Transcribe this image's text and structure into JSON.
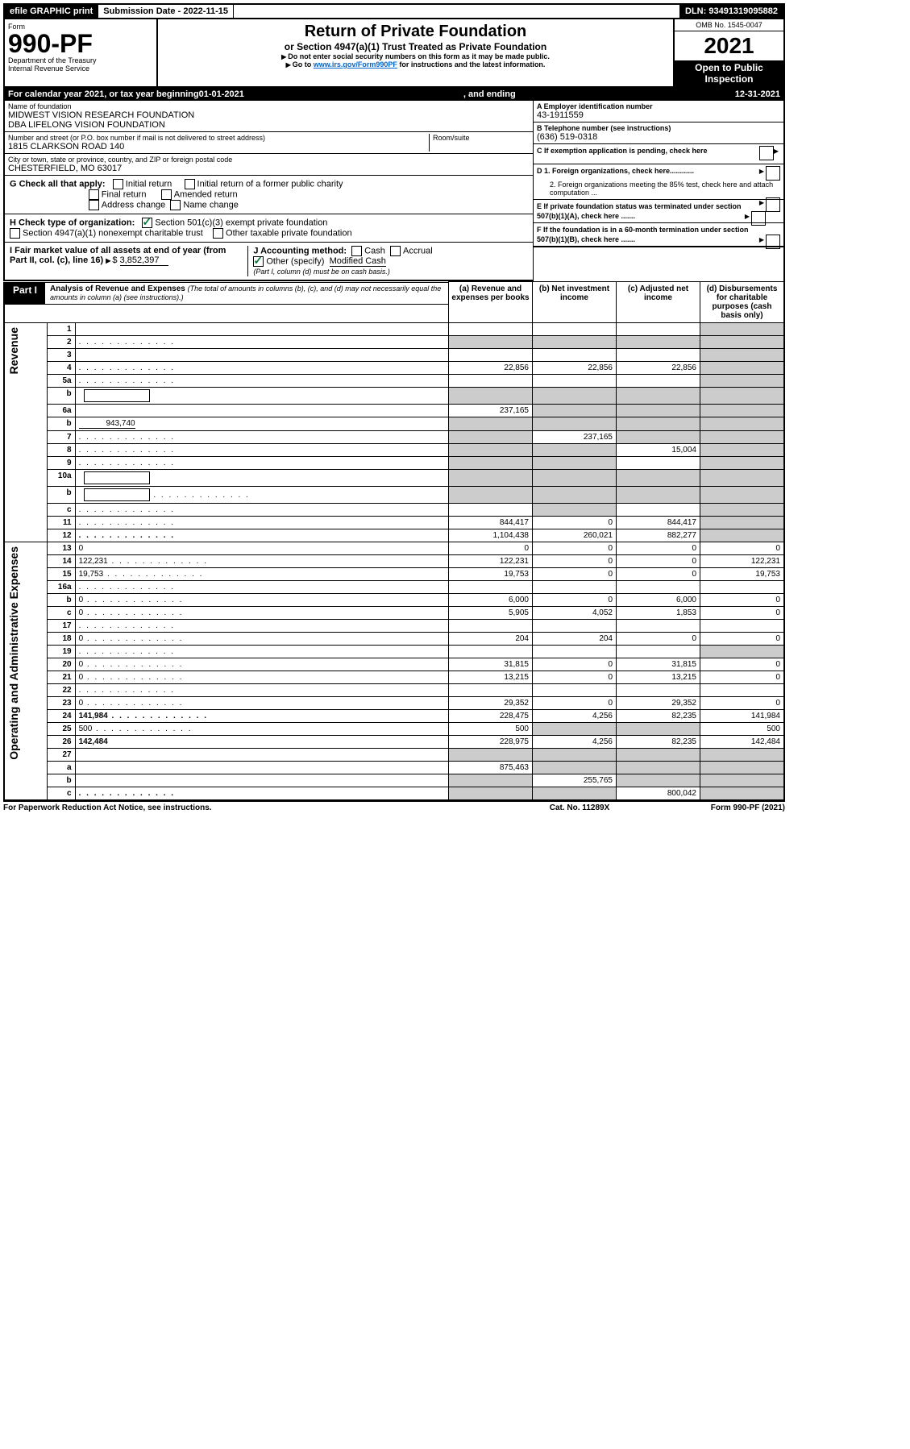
{
  "topbar": {
    "efile": "efile GRAPHIC print",
    "submission_label": "Submission Date - ",
    "submission_date": "2022-11-15",
    "dln_label": "DLN: ",
    "dln": "93491319095882"
  },
  "header": {
    "form_word": "Form",
    "form_number": "990-PF",
    "dept": "Department of the Treasury",
    "irs": "Internal Revenue Service",
    "title": "Return of Private Foundation",
    "subtitle": "or Section 4947(a)(1) Trust Treated as Private Foundation",
    "note1": "Do not enter social security numbers on this form as it may be made public.",
    "note2_prefix": "Go to ",
    "note2_link": "www.irs.gov/Form990PF",
    "note2_suffix": " for instructions and the latest information.",
    "omb": "OMB No. 1545-0047",
    "year": "2021",
    "open": "Open to Public",
    "inspection": "Inspection"
  },
  "calendar": {
    "prefix": "For calendar year 2021, or tax year beginning ",
    "begin": "01-01-2021",
    "mid": ", and ending ",
    "end": "12-31-2021"
  },
  "foundation": {
    "name_label": "Name of foundation",
    "name1": "MIDWEST VISION RESEARCH FOUNDATION",
    "name2": "DBA LIFELONG VISION FOUNDATION",
    "addr_label": "Number and street (or P.O. box number if mail is not delivered to street address)",
    "addr": "1815 CLARKSON ROAD 140",
    "room_label": "Room/suite",
    "city_label": "City or town, state or province, country, and ZIP or foreign postal code",
    "city": "CHESTERFIELD, MO  63017",
    "ein_label": "A Employer identification number",
    "ein": "43-1911559",
    "phone_label": "B Telephone number (see instructions)",
    "phone": "(636) 519-0318",
    "c_label": "C If exemption application is pending, check here",
    "d1": "D 1. Foreign organizations, check here............",
    "d2": "2. Foreign organizations meeting the 85% test, check here and attach computation ...",
    "e_label": "E  If private foundation status was terminated under section 507(b)(1)(A), check here .......",
    "f_label": "F  If the foundation is in a 60-month termination under section 507(b)(1)(B), check here ......."
  },
  "checks": {
    "g_label": "G Check all that apply:",
    "initial": "Initial return",
    "initial_former": "Initial return of a former public charity",
    "final": "Final return",
    "amended": "Amended return",
    "address": "Address change",
    "name": "Name change",
    "h_label": "H Check type of organization:",
    "h_501c3": "Section 501(c)(3) exempt private foundation",
    "h_4947": "Section 4947(a)(1) nonexempt charitable trust",
    "h_other": "Other taxable private foundation",
    "i_label": "I Fair market value of all assets at end of year (from Part II, col. (c), line 16)",
    "i_value": "3,852,397",
    "j_label": "J Accounting method:",
    "j_cash": "Cash",
    "j_accrual": "Accrual",
    "j_other": "Other (specify)",
    "j_other_val": "Modified Cash",
    "j_note": "(Part I, column (d) must be on cash basis.)"
  },
  "part1": {
    "label": "Part I",
    "title": "Analysis of Revenue and Expenses",
    "title_note": "(The total of amounts in columns (b), (c), and (d) may not necessarily equal the amounts in column (a) (see instructions).)",
    "col_a": "(a)   Revenue and expenses per books",
    "col_b": "(b)   Net investment income",
    "col_c": "(c)  Adjusted net income",
    "col_d": "(d)  Disbursements for charitable purposes (cash basis only)"
  },
  "sidelabels": {
    "revenue": "Revenue",
    "expenses": "Operating and Administrative Expenses"
  },
  "rows": [
    {
      "n": "1",
      "d": "",
      "a": "",
      "b": "",
      "c": "",
      "dGrey": true
    },
    {
      "n": "2",
      "d": "",
      "a": "",
      "b": "",
      "c": "",
      "allGrey": true,
      "dot": true
    },
    {
      "n": "3",
      "d": "",
      "a": "",
      "b": "",
      "c": "",
      "dGrey": true
    },
    {
      "n": "4",
      "d": "",
      "a": "22,856",
      "b": "22,856",
      "c": "22,856",
      "dGrey": true,
      "dot": true
    },
    {
      "n": "5a",
      "d": "",
      "a": "",
      "b": "",
      "c": "",
      "dGrey": true,
      "dot": true
    },
    {
      "n": "b",
      "d": "",
      "a": "",
      "b": "",
      "c": "",
      "allGrey": true,
      "inlineBox": true
    },
    {
      "n": "6a",
      "d": "",
      "a": "237,165",
      "b": "",
      "c": "",
      "bGrey": true,
      "cGrey": true,
      "dGrey": true
    },
    {
      "n": "b",
      "d": "",
      "a": "",
      "b": "",
      "c": "",
      "allGrey": true,
      "inlineVal": "943,740"
    },
    {
      "n": "7",
      "d": "",
      "a": "",
      "b": "237,165",
      "c": "",
      "aGrey": true,
      "cGrey": true,
      "dGrey": true,
      "dot": true
    },
    {
      "n": "8",
      "d": "",
      "a": "",
      "b": "",
      "c": "15,004",
      "aGrey": true,
      "bGrey": true,
      "dGrey": true,
      "dot": true
    },
    {
      "n": "9",
      "d": "",
      "a": "",
      "b": "",
      "c": "",
      "aGrey": true,
      "bGrey": true,
      "dGrey": true,
      "dot": true
    },
    {
      "n": "10a",
      "d": "",
      "a": "",
      "b": "",
      "c": "",
      "allGrey": true,
      "inlineBox": true
    },
    {
      "n": "b",
      "d": "",
      "a": "",
      "b": "",
      "c": "",
      "allGrey": true,
      "inlineBox": true,
      "dot": true
    },
    {
      "n": "c",
      "d": "",
      "a": "",
      "b": "",
      "c": "",
      "bGrey": true,
      "dGrey": true,
      "dot": true
    },
    {
      "n": "11",
      "d": "",
      "a": "844,417",
      "b": "0",
      "c": "844,417",
      "dGrey": true,
      "dot": true
    },
    {
      "n": "12",
      "d": "",
      "a": "1,104,438",
      "b": "260,021",
      "c": "882,277",
      "dGrey": true,
      "bold": true,
      "dot": true
    },
    {
      "n": "13",
      "d": "0",
      "a": "0",
      "b": "0",
      "c": "0"
    },
    {
      "n": "14",
      "d": "122,231",
      "a": "122,231",
      "b": "0",
      "c": "0",
      "dot": true
    },
    {
      "n": "15",
      "d": "19,753",
      "a": "19,753",
      "b": "0",
      "c": "0",
      "dot": true
    },
    {
      "n": "16a",
      "d": "",
      "a": "",
      "b": "",
      "c": "",
      "dot": true
    },
    {
      "n": "b",
      "d": "0",
      "a": "6,000",
      "b": "0",
      "c": "6,000",
      "dot": true
    },
    {
      "n": "c",
      "d": "0",
      "a": "5,905",
      "b": "4,052",
      "c": "1,853",
      "dot": true
    },
    {
      "n": "17",
      "d": "",
      "a": "",
      "b": "",
      "c": "",
      "dot": true
    },
    {
      "n": "18",
      "d": "0",
      "a": "204",
      "b": "204",
      "c": "0",
      "dot": true
    },
    {
      "n": "19",
      "d": "",
      "a": "",
      "b": "",
      "c": "",
      "dGrey": true,
      "dot": true
    },
    {
      "n": "20",
      "d": "0",
      "a": "31,815",
      "b": "0",
      "c": "31,815",
      "dot": true
    },
    {
      "n": "21",
      "d": "0",
      "a": "13,215",
      "b": "0",
      "c": "13,215",
      "dot": true
    },
    {
      "n": "22",
      "d": "",
      "a": "",
      "b": "",
      "c": "",
      "dot": true
    },
    {
      "n": "23",
      "d": "0",
      "a": "29,352",
      "b": "0",
      "c": "29,352",
      "dot": true
    },
    {
      "n": "24",
      "d": "141,984",
      "a": "228,475",
      "b": "4,256",
      "c": "82,235",
      "bold": true,
      "dot": true
    },
    {
      "n": "25",
      "d": "500",
      "a": "500",
      "b": "",
      "c": "",
      "bGrey": true,
      "cGrey": true,
      "dot": true
    },
    {
      "n": "26",
      "d": "142,484",
      "a": "228,975",
      "b": "4,256",
      "c": "82,235",
      "bold": true
    },
    {
      "n": "27",
      "d": "",
      "a": "",
      "b": "",
      "c": "",
      "allGrey": true
    },
    {
      "n": "a",
      "d": "",
      "a": "875,463",
      "b": "",
      "c": "",
      "bGrey": true,
      "cGrey": true,
      "dGrey": true,
      "bold": true
    },
    {
      "n": "b",
      "d": "",
      "a": "",
      "b": "255,765",
      "c": "",
      "aGrey": true,
      "cGrey": true,
      "dGrey": true,
      "bold": true
    },
    {
      "n": "c",
      "d": "",
      "a": "",
      "b": "",
      "c": "800,042",
      "aGrey": true,
      "bGrey": true,
      "dGrey": true,
      "bold": true,
      "dot": true
    }
  ],
  "footer": {
    "left": "For Paperwork Reduction Act Notice, see instructions.",
    "mid": "Cat. No. 11289X",
    "right": "Form 990-PF (2021)"
  }
}
